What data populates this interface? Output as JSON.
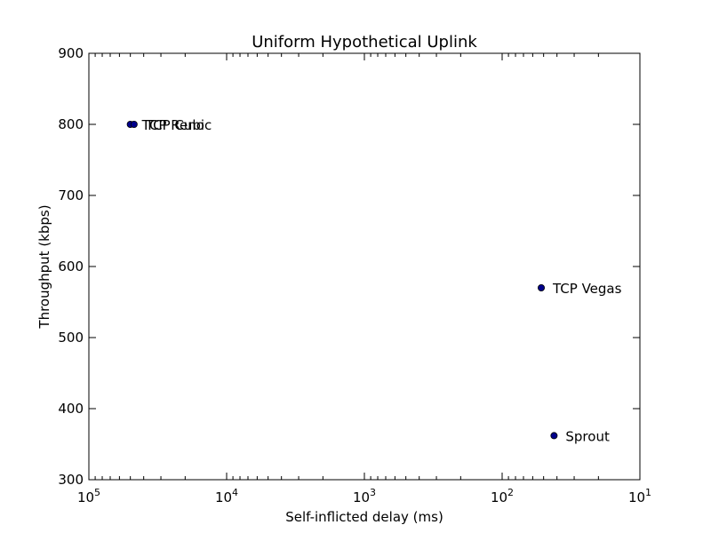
{
  "chart_data": {
    "type": "scatter",
    "title": "Uniform Hypothetical Uplink",
    "xlabel": "Self-inflicted delay (ms)",
    "ylabel": "Throughput (kbps)",
    "x_scale": "log",
    "x_inverted": true,
    "xlim": [
      100000,
      10
    ],
    "ylim": [
      300,
      900
    ],
    "x_tick_labels": [
      {
        "value": 100000,
        "base": "10",
        "exp": "5"
      },
      {
        "value": 10000,
        "base": "10",
        "exp": "4"
      },
      {
        "value": 1000,
        "base": "10",
        "exp": "3"
      },
      {
        "value": 100,
        "base": "10",
        "exp": "2"
      },
      {
        "value": 10,
        "base": "10",
        "exp": "1"
      }
    ],
    "y_ticks": [
      300,
      400,
      500,
      600,
      700,
      800,
      900
    ],
    "y_tick_labels": [
      "300",
      "400",
      "500",
      "600",
      "700",
      "800",
      "900"
    ],
    "grid": false,
    "marker_color": "#00008b",
    "points": [
      {
        "label": "TCP Reno",
        "x": 50000,
        "y": 800
      },
      {
        "label": "TCP Cubic",
        "x": 47000,
        "y": 800
      },
      {
        "label": "TCP Vegas",
        "x": 52,
        "y": 570
      },
      {
        "label": "Sprout",
        "x": 42,
        "y": 362
      }
    ]
  }
}
